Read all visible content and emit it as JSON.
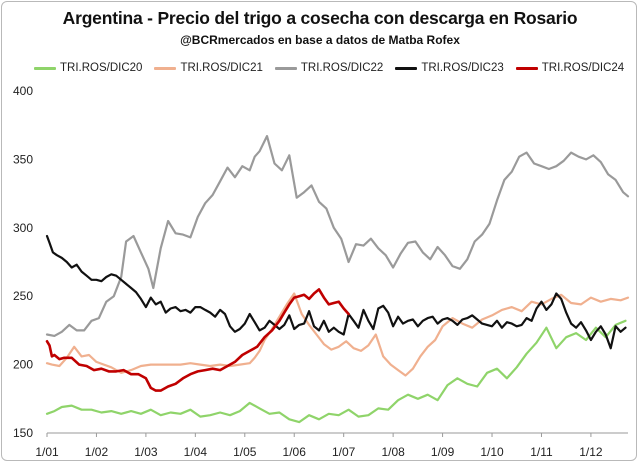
{
  "header": {
    "title": "Argentina - Precio del trigo a cosecha con descarga en Rosario",
    "subtitle": "@BCRmercados en base a datos de Matba Rofex"
  },
  "chart_data": {
    "type": "line",
    "title": "Argentina - Precio del trigo a cosecha con descarga en Rosario",
    "subtitle": "@BCRmercados en base a datos de Matba Rofex",
    "xlabel": "",
    "ylabel": "",
    "x_ticks": [
      "1/01",
      "1/02",
      "1/03",
      "1/04",
      "1/05",
      "1/06",
      "1/07",
      "1/08",
      "1/09",
      "1/10",
      "1/11",
      "1/12"
    ],
    "xlim": [
      0,
      11.75
    ],
    "ylim": [
      150,
      400
    ],
    "y_ticks": [
      150,
      200,
      250,
      300,
      350,
      400
    ],
    "grid": false,
    "legend_position": "top",
    "series": [
      {
        "name": "TRI.ROS/DIC20",
        "color": "#8fd46a",
        "x": [
          0.0,
          0.15,
          0.3,
          0.5,
          0.7,
          0.9,
          1.1,
          1.3,
          1.5,
          1.7,
          1.9,
          2.1,
          2.3,
          2.5,
          2.7,
          2.9,
          3.1,
          3.3,
          3.5,
          3.7,
          3.9,
          4.1,
          4.3,
          4.5,
          4.7,
          4.9,
          5.1,
          5.3,
          5.5,
          5.7,
          5.9,
          6.1,
          6.3,
          6.5,
          6.7,
          6.9,
          7.1,
          7.3,
          7.5,
          7.7,
          7.9,
          8.1,
          8.3,
          8.5,
          8.7,
          8.9,
          9.1,
          9.3,
          9.5,
          9.7,
          9.9,
          10.1,
          10.3,
          10.5,
          10.7,
          10.9,
          11.1,
          11.3,
          11.5,
          11.7
        ],
        "values": [
          164,
          166,
          169,
          170,
          167,
          167,
          165,
          166,
          164,
          166,
          164,
          167,
          163,
          165,
          164,
          167,
          162,
          163,
          165,
          163,
          166,
          172,
          168,
          164,
          165,
          160,
          158,
          163,
          160,
          164,
          163,
          167,
          162,
          163,
          168,
          167,
          174,
          178,
          175,
          178,
          174,
          185,
          190,
          186,
          184,
          194,
          197,
          190,
          198,
          208,
          216,
          227,
          212,
          220,
          223,
          218,
          227,
          220,
          229,
          232
        ]
      },
      {
        "name": "TRI.ROS/DIC21",
        "color": "#f0b08f",
        "x": [
          0.0,
          0.1,
          0.25,
          0.4,
          0.55,
          0.7,
          0.85,
          1.0,
          1.15,
          1.3,
          1.5,
          1.7,
          1.9,
          2.1,
          2.3,
          2.5,
          2.7,
          2.9,
          3.1,
          3.3,
          3.5,
          3.7,
          3.9,
          4.1,
          4.2,
          4.3,
          4.4,
          4.55,
          4.7,
          4.85,
          5.0,
          5.15,
          5.3,
          5.45,
          5.6,
          5.75,
          5.9,
          6.05,
          6.2,
          6.35,
          6.5,
          6.65,
          6.8,
          6.95,
          7.1,
          7.25,
          7.4,
          7.55,
          7.7,
          7.85,
          8.0,
          8.2,
          8.4,
          8.6,
          8.8,
          9.0,
          9.2,
          9.4,
          9.6,
          9.8,
          10.0,
          10.2,
          10.4,
          10.6,
          10.8,
          11.0,
          11.2,
          11.4,
          11.6,
          11.75
        ],
        "values": [
          201,
          200,
          199,
          205,
          213,
          206,
          207,
          202,
          200,
          198,
          194,
          196,
          199,
          200,
          200,
          200,
          200,
          201,
          200,
          199,
          200,
          199,
          200,
          201,
          205,
          210,
          218,
          226,
          235,
          244,
          252,
          237,
          229,
          222,
          215,
          211,
          213,
          217,
          212,
          210,
          214,
          222,
          206,
          200,
          196,
          192,
          197,
          206,
          213,
          218,
          228,
          234,
          230,
          227,
          233,
          236,
          240,
          242,
          239,
          246,
          244,
          248,
          251,
          245,
          244,
          249,
          246,
          248,
          247,
          249
        ]
      },
      {
        "name": "TRI.ROS/DIC22",
        "color": "#9a9a9a",
        "x": [
          0.0,
          0.15,
          0.3,
          0.45,
          0.6,
          0.75,
          0.9,
          1.05,
          1.2,
          1.35,
          1.5,
          1.6,
          1.75,
          1.9,
          2.05,
          2.15,
          2.3,
          2.45,
          2.6,
          2.75,
          2.9,
          3.05,
          3.2,
          3.35,
          3.5,
          3.65,
          3.8,
          3.95,
          4.1,
          4.2,
          4.3,
          4.45,
          4.6,
          4.75,
          4.9,
          5.05,
          5.2,
          5.35,
          5.5,
          5.65,
          5.8,
          5.95,
          6.1,
          6.25,
          6.4,
          6.55,
          6.7,
          6.85,
          7.0,
          7.15,
          7.3,
          7.45,
          7.6,
          7.75,
          7.9,
          8.05,
          8.2,
          8.35,
          8.5,
          8.65,
          8.8,
          8.95,
          9.1,
          9.25,
          9.4,
          9.55,
          9.7,
          9.85,
          10.0,
          10.15,
          10.3,
          10.45,
          10.6,
          10.75,
          10.9,
          11.05,
          11.2,
          11.35,
          11.5,
          11.65,
          11.75
        ],
        "values": [
          222,
          221,
          224,
          229,
          225,
          225,
          232,
          234,
          246,
          250,
          264,
          290,
          294,
          282,
          270,
          256,
          285,
          305,
          296,
          295,
          293,
          308,
          318,
          324,
          334,
          344,
          337,
          345,
          342,
          352,
          356,
          367,
          347,
          342,
          353,
          322,
          326,
          331,
          319,
          314,
          300,
          292,
          275,
          288,
          287,
          292,
          285,
          280,
          271,
          281,
          289,
          290,
          282,
          277,
          286,
          280,
          272,
          270,
          277,
          290,
          295,
          303,
          320,
          335,
          341,
          352,
          355,
          347,
          345,
          343,
          345,
          349,
          355,
          352,
          350,
          353,
          348,
          339,
          335,
          326,
          323
        ]
      },
      {
        "name": "TRI.ROS/DIC23",
        "color": "#111111",
        "x": [
          0.0,
          0.05,
          0.12,
          0.2,
          0.3,
          0.4,
          0.5,
          0.6,
          0.7,
          0.8,
          0.9,
          1.0,
          1.1,
          1.2,
          1.3,
          1.4,
          1.5,
          1.6,
          1.7,
          1.8,
          1.9,
          2.0,
          2.1,
          2.2,
          2.3,
          2.4,
          2.5,
          2.6,
          2.7,
          2.8,
          2.9,
          3.0,
          3.1,
          3.2,
          3.3,
          3.4,
          3.5,
          3.6,
          3.7,
          3.8,
          3.9,
          4.0,
          4.1,
          4.2,
          4.3,
          4.4,
          4.5,
          4.6,
          4.7,
          4.8,
          4.9,
          5.0,
          5.1,
          5.2,
          5.3,
          5.4,
          5.5,
          5.6,
          5.7,
          5.8,
          5.9,
          6.0,
          6.1,
          6.2,
          6.3,
          6.4,
          6.5,
          6.6,
          6.7,
          6.8,
          6.9,
          7.0,
          7.1,
          7.2,
          7.3,
          7.4,
          7.5,
          7.6,
          7.7,
          7.8,
          7.9,
          8.0,
          8.1,
          8.2,
          8.3,
          8.4,
          8.5,
          8.6,
          8.7,
          8.8,
          8.9,
          9.0,
          9.1,
          9.2,
          9.3,
          9.4,
          9.5,
          9.6,
          9.7,
          9.8,
          9.9,
          10.0,
          10.1,
          10.2,
          10.3,
          10.4,
          10.5,
          10.6,
          10.7,
          10.8,
          10.9,
          11.0,
          11.1,
          11.2,
          11.3,
          11.4,
          11.5,
          11.6,
          11.7
        ],
        "values": [
          294,
          289,
          282,
          280,
          278,
          275,
          271,
          273,
          268,
          265,
          262,
          262,
          261,
          264,
          266,
          265,
          262,
          259,
          256,
          253,
          248,
          242,
          249,
          244,
          246,
          238,
          241,
          242,
          239,
          240,
          238,
          242,
          242,
          240,
          238,
          235,
          240,
          237,
          228,
          224,
          226,
          230,
          237,
          231,
          225,
          227,
          232,
          229,
          226,
          229,
          236,
          226,
          229,
          230,
          239,
          228,
          225,
          232,
          224,
          227,
          224,
          222,
          237,
          232,
          227,
          240,
          232,
          226,
          241,
          243,
          238,
          228,
          235,
          230,
          232,
          233,
          228,
          232,
          234,
          235,
          230,
          233,
          234,
          232,
          229,
          233,
          234,
          236,
          233,
          230,
          229,
          228,
          232,
          227,
          231,
          230,
          228,
          229,
          234,
          232,
          241,
          246,
          240,
          244,
          252,
          248,
          238,
          230,
          227,
          231,
          225,
          218,
          224,
          228,
          222,
          212,
          228,
          224,
          227
        ]
      },
      {
        "name": "TRI.ROS/DIC24",
        "color": "#c00000",
        "x": [
          0.0,
          0.05,
          0.1,
          0.15,
          0.25,
          0.35,
          0.5,
          0.65,
          0.8,
          0.95,
          1.1,
          1.25,
          1.4,
          1.55,
          1.7,
          1.85,
          2.0,
          2.1,
          2.2,
          2.3,
          2.45,
          2.6,
          2.75,
          2.9,
          3.05,
          3.2,
          3.35,
          3.5,
          3.65,
          3.8,
          3.95,
          4.1,
          4.25,
          4.4,
          4.55,
          4.7,
          4.8,
          4.9,
          5.0,
          5.1,
          5.2,
          5.3,
          5.4,
          5.5,
          5.6,
          5.7,
          5.8,
          5.9,
          6.0,
          6.1
        ],
        "values": [
          217,
          214,
          206,
          207,
          204,
          205,
          205,
          200,
          199,
          196,
          197,
          195,
          195,
          196,
          193,
          193,
          190,
          183,
          181,
          181,
          184,
          186,
          190,
          193,
          195,
          196,
          197,
          196,
          199,
          202,
          207,
          210,
          213,
          220,
          225,
          232,
          238,
          244,
          249,
          250,
          251,
          248,
          252,
          255,
          249,
          244,
          245,
          246,
          241,
          237
        ]
      }
    ]
  }
}
